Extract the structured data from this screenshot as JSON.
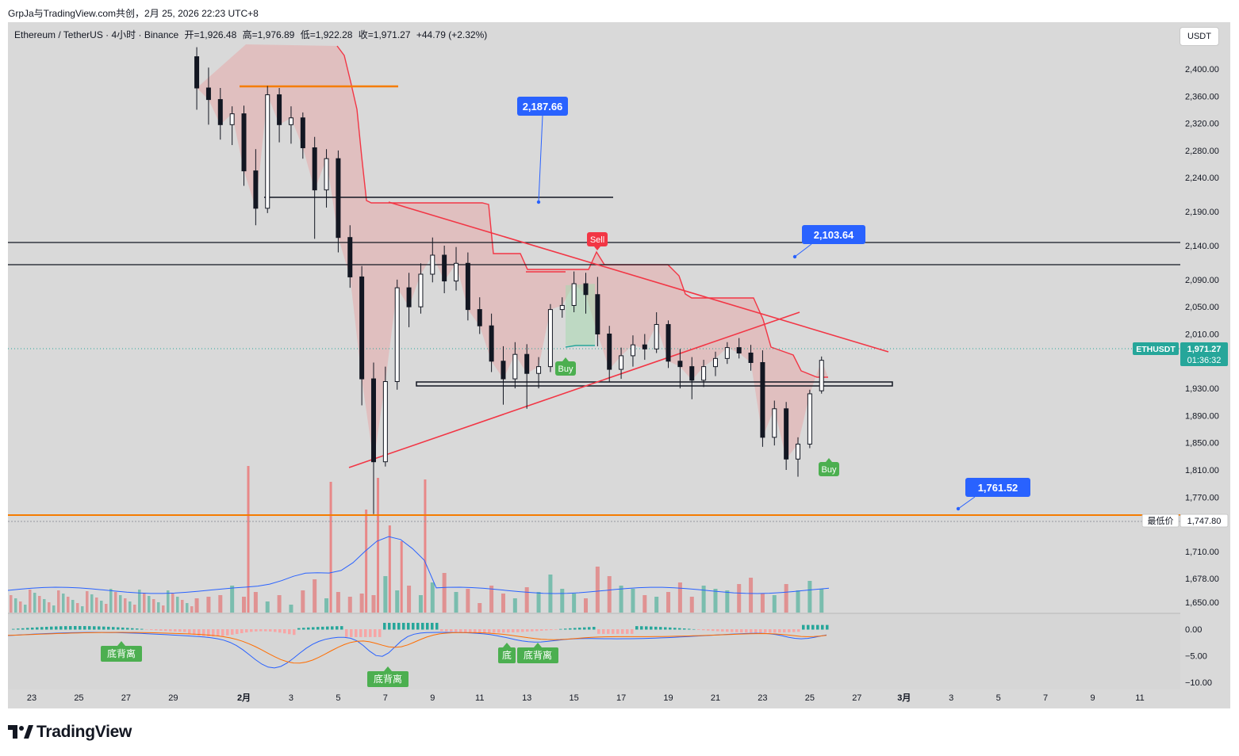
{
  "header": {
    "text": "GrpJa与TradingView.com共创，2月 25, 2026 22:23 UTC+8"
  },
  "symbol": {
    "name": "Ethereum / TetherUS · 4小时 · Binance",
    "open": "开=1,926.48",
    "high": "高=1,976.89",
    "low": "低=1,922.28",
    "close": "收=1,971.27",
    "change": "+44.79 (+2.32%)"
  },
  "currency_button": "USDT",
  "price_tag": {
    "symbol": "ETHUSDT",
    "price": "1,971.27",
    "countdown": "01:36:32",
    "color": "#26a69a"
  },
  "lowest_price": {
    "label": "最低价",
    "value": "1,747.80"
  },
  "annotations": [
    {
      "text": "2,187.66",
      "color": "#2962ff"
    },
    {
      "text": "2,103.64",
      "color": "#2962ff"
    },
    {
      "text": "1,761.52",
      "color": "#2962ff"
    }
  ],
  "signals": [
    {
      "type": "sell",
      "text": "Sell"
    },
    {
      "type": "buy",
      "text": "Buy"
    },
    {
      "type": "buy",
      "text": "Buy"
    }
  ],
  "divergence_labels": [
    {
      "text": "底背离"
    },
    {
      "text": "底背离"
    },
    {
      "text": "底"
    },
    {
      "text": "底背离"
    }
  ],
  "footer": {
    "brand": "TradingView"
  },
  "chart_data": {
    "type": "candlestick",
    "symbol": "ETHUSDT",
    "timeframe": "4小时",
    "exchange": "Binance",
    "price_axis_ticks": [
      "2,400.00",
      "2,360.00",
      "2,320.00",
      "2,280.00",
      "2,240.00",
      "2,190.00",
      "2,140.00",
      "2,090.00",
      "2,050.00",
      "2,010.00",
      "1,930.00",
      "1,890.00",
      "1,850.00",
      "1,810.00",
      "1,770.00",
      "1,710.00",
      "1,678.00",
      "1,650.00"
    ],
    "indicator_axis_ticks": [
      "0.00",
      "−5.00",
      "−10.00"
    ],
    "time_axis_ticks": [
      "23",
      "25",
      "27",
      "29",
      "2月",
      "3",
      "5",
      "7",
      "9",
      "11",
      "13",
      "15",
      "17",
      "19",
      "21",
      "23",
      "25",
      "27",
      "3月",
      "3",
      "5",
      "7",
      "9",
      "11"
    ],
    "time_range": [
      "2026-01-23",
      "2026-03-11"
    ],
    "price_range": [
      1630,
      2440
    ],
    "indicator_range": [
      -11,
      1.5
    ],
    "last_price": 1971.27,
    "lowest_price": 1747.8,
    "annotation_points": [
      2187.66,
      2103.64,
      1761.52
    ],
    "candles": [
      {
        "t": "2026-01-30 00:00",
        "o": 2418,
        "h": 2432,
        "l": 2340,
        "c": 2372
      },
      {
        "t": "2026-01-30 12:00",
        "o": 2372,
        "h": 2402,
        "l": 2318,
        "c": 2355
      },
      {
        "t": "2026-01-31 00:00",
        "o": 2355,
        "h": 2372,
        "l": 2296,
        "c": 2318
      },
      {
        "t": "2026-01-31 12:00",
        "o": 2318,
        "h": 2345,
        "l": 2288,
        "c": 2334
      },
      {
        "t": "2026-02-01 00:00",
        "o": 2334,
        "h": 2346,
        "l": 2228,
        "c": 2250
      },
      {
        "t": "2026-02-01 12:00",
        "o": 2250,
        "h": 2282,
        "l": 2170,
        "c": 2195
      },
      {
        "t": "2026-02-02 00:00",
        "o": 2195,
        "h": 2375,
        "l": 2188,
        "c": 2362
      },
      {
        "t": "2026-02-02 12:00",
        "o": 2362,
        "h": 2372,
        "l": 2292,
        "c": 2318
      },
      {
        "t": "2026-02-03 00:00",
        "o": 2318,
        "h": 2345,
        "l": 2290,
        "c": 2328
      },
      {
        "t": "2026-02-03 12:00",
        "o": 2328,
        "h": 2336,
        "l": 2268,
        "c": 2284
      },
      {
        "t": "2026-02-04 00:00",
        "o": 2284,
        "h": 2300,
        "l": 2150,
        "c": 2222
      },
      {
        "t": "2026-02-04 12:00",
        "o": 2222,
        "h": 2282,
        "l": 2196,
        "c": 2268
      },
      {
        "t": "2026-02-05 00:00",
        "o": 2268,
        "h": 2280,
        "l": 2130,
        "c": 2152
      },
      {
        "t": "2026-02-05 12:00",
        "o": 2152,
        "h": 2170,
        "l": 2078,
        "c": 2094
      },
      {
        "t": "2026-02-06 00:00",
        "o": 2094,
        "h": 2110,
        "l": 1905,
        "c": 1944
      },
      {
        "t": "2026-02-06 12:00",
        "o": 1944,
        "h": 1968,
        "l": 1745,
        "c": 1822
      },
      {
        "t": "2026-02-07 00:00",
        "o": 1822,
        "h": 1962,
        "l": 1815,
        "c": 1940
      },
      {
        "t": "2026-02-07 12:00",
        "o": 1940,
        "h": 2090,
        "l": 1928,
        "c": 2078
      },
      {
        "t": "2026-02-08 00:00",
        "o": 2078,
        "h": 2100,
        "l": 2020,
        "c": 2050
      },
      {
        "t": "2026-02-08 12:00",
        "o": 2050,
        "h": 2114,
        "l": 2040,
        "c": 2098
      },
      {
        "t": "2026-02-09 00:00",
        "o": 2098,
        "h": 2152,
        "l": 2086,
        "c": 2126
      },
      {
        "t": "2026-02-09 12:00",
        "o": 2126,
        "h": 2140,
        "l": 2070,
        "c": 2088
      },
      {
        "t": "2026-02-10 00:00",
        "o": 2088,
        "h": 2138,
        "l": 2074,
        "c": 2114
      },
      {
        "t": "2026-02-10 12:00",
        "o": 2114,
        "h": 2130,
        "l": 2030,
        "c": 2046
      },
      {
        "t": "2026-02-11 00:00",
        "o": 2046,
        "h": 2064,
        "l": 2010,
        "c": 2022
      },
      {
        "t": "2026-02-11 12:00",
        "o": 2022,
        "h": 2040,
        "l": 1954,
        "c": 1970
      },
      {
        "t": "2026-02-12 00:00",
        "o": 1970,
        "h": 1992,
        "l": 1906,
        "c": 1944
      },
      {
        "t": "2026-02-12 12:00",
        "o": 1944,
        "h": 1998,
        "l": 1930,
        "c": 1980
      },
      {
        "t": "2026-02-13 00:00",
        "o": 1980,
        "h": 1995,
        "l": 1900,
        "c": 1952
      },
      {
        "t": "2026-02-13 12:00",
        "o": 1952,
        "h": 1976,
        "l": 1930,
        "c": 1962
      },
      {
        "t": "2026-02-14 00:00",
        "o": 1962,
        "h": 2054,
        "l": 1954,
        "c": 2046
      },
      {
        "t": "2026-02-14 12:00",
        "o": 2046,
        "h": 2064,
        "l": 2034,
        "c": 2052
      },
      {
        "t": "2026-02-15 00:00",
        "o": 2052,
        "h": 2102,
        "l": 2042,
        "c": 2084
      },
      {
        "t": "2026-02-15 12:00",
        "o": 2084,
        "h": 2100,
        "l": 2040,
        "c": 2068
      },
      {
        "t": "2026-02-16 00:00",
        "o": 2068,
        "h": 2094,
        "l": 1992,
        "c": 2010
      },
      {
        "t": "2026-02-16 12:00",
        "o": 2010,
        "h": 2022,
        "l": 1940,
        "c": 1958
      },
      {
        "t": "2026-02-17 00:00",
        "o": 1958,
        "h": 1990,
        "l": 1944,
        "c": 1978
      },
      {
        "t": "2026-02-17 12:00",
        "o": 1978,
        "h": 2008,
        "l": 1962,
        "c": 1994
      },
      {
        "t": "2026-02-18 00:00",
        "o": 1994,
        "h": 2010,
        "l": 1972,
        "c": 1988
      },
      {
        "t": "2026-02-18 12:00",
        "o": 1988,
        "h": 2042,
        "l": 1982,
        "c": 2024
      },
      {
        "t": "2026-02-19 00:00",
        "o": 2024,
        "h": 2030,
        "l": 1960,
        "c": 1970
      },
      {
        "t": "2026-02-19 12:00",
        "o": 1970,
        "h": 1988,
        "l": 1930,
        "c": 1962
      },
      {
        "t": "2026-02-20 00:00",
        "o": 1962,
        "h": 1976,
        "l": 1914,
        "c": 1942
      },
      {
        "t": "2026-02-20 12:00",
        "o": 1942,
        "h": 1972,
        "l": 1932,
        "c": 1962
      },
      {
        "t": "2026-02-21 00:00",
        "o": 1962,
        "h": 1984,
        "l": 1948,
        "c": 1974
      },
      {
        "t": "2026-02-21 12:00",
        "o": 1974,
        "h": 1998,
        "l": 1966,
        "c": 1990
      },
      {
        "t": "2026-02-22 00:00",
        "o": 1990,
        "h": 2004,
        "l": 1974,
        "c": 1982
      },
      {
        "t": "2026-02-22 12:00",
        "o": 1982,
        "h": 1994,
        "l": 1956,
        "c": 1968
      },
      {
        "t": "2026-02-23 00:00",
        "o": 1968,
        "h": 1986,
        "l": 1844,
        "c": 1858
      },
      {
        "t": "2026-02-23 12:00",
        "o": 1858,
        "h": 1912,
        "l": 1846,
        "c": 1900
      },
      {
        "t": "2026-02-24 00:00",
        "o": 1900,
        "h": 1910,
        "l": 1810,
        "c": 1826
      },
      {
        "t": "2026-02-24 12:00",
        "o": 1826,
        "h": 1858,
        "l": 1800,
        "c": 1848
      },
      {
        "t": "2026-02-25 00:00",
        "o": 1848,
        "h": 1928,
        "l": 1842,
        "c": 1922
      },
      {
        "t": "2026-02-25 12:00",
        "o": 1926.48,
        "h": 1976.89,
        "l": 1922.28,
        "c": 1971.27
      }
    ]
  }
}
